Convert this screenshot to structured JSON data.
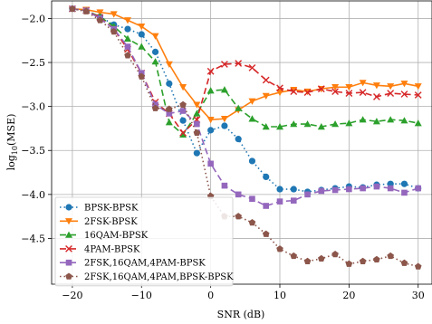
{
  "chart_data": {
    "type": "line",
    "xlabel": "SNR (dB)",
    "ylabel_main": "log",
    "ylabel_sub": "10",
    "ylabel_rest": "(MSE)",
    "xlim": [
      -23,
      32
    ],
    "ylim": [
      -5.02,
      -1.8
    ],
    "xticks": [
      -20,
      -10,
      0,
      10,
      20,
      30
    ],
    "xtick_labels": [
      "−20",
      "−10",
      "0",
      "10",
      "20",
      "30"
    ],
    "yticks": [
      -4.5,
      -4.0,
      -3.5,
      -3.0,
      -2.5,
      -2.0
    ],
    "ytick_labels": [
      "−4.5",
      "−4.0",
      "−3.5",
      "−3.0",
      "−2.5",
      "−2.0"
    ],
    "grid": true,
    "legend_position": "lower-left",
    "series": [
      {
        "name": "BPSK-BPSK",
        "color": "#1f77b4",
        "dash": "1.5,3",
        "marker": "circle",
        "x": [
          -20,
          -18,
          -16,
          -14,
          -12,
          -10,
          -8,
          -6,
          -4,
          -2,
          0,
          2,
          4,
          6,
          8,
          10,
          12,
          14,
          16,
          18,
          20,
          22,
          24,
          26,
          28,
          30
        ],
        "y": [
          -1.89,
          -1.91,
          -1.98,
          -2.07,
          -2.12,
          -2.18,
          -2.38,
          -2.74,
          -3.16,
          -3.53,
          -3.27,
          -3.22,
          -3.37,
          -3.62,
          -3.8,
          -3.94,
          -3.94,
          -3.97,
          -3.95,
          -3.93,
          -3.91,
          -3.92,
          -3.89,
          -3.88,
          -3.88,
          -3.93
        ]
      },
      {
        "name": "2FSK-BPSK",
        "color": "#ff7f0e",
        "dash": "",
        "marker": "triangle-down",
        "x": [
          -20,
          -18,
          -16,
          -14,
          -12,
          -10,
          -8,
          -6,
          -4,
          -2,
          0,
          2,
          4,
          6,
          8,
          10,
          12,
          14,
          16,
          18,
          20,
          22,
          24,
          26,
          28,
          30
        ],
        "y": [
          -1.89,
          -1.9,
          -1.93,
          -1.95,
          -2.02,
          -2.09,
          -2.2,
          -2.52,
          -2.78,
          -2.98,
          -3.15,
          -3.14,
          -3.04,
          -2.94,
          -2.88,
          -2.84,
          -2.81,
          -2.83,
          -2.8,
          -2.78,
          -2.78,
          -2.73,
          -2.76,
          -2.77,
          -2.74,
          -2.77
        ]
      },
      {
        "name": "16QAM-BPSK",
        "color": "#2ca02c",
        "dash": "7,4",
        "marker": "triangle-up",
        "x": [
          -20,
          -18,
          -16,
          -14,
          -12,
          -10,
          -8,
          -6,
          -4,
          -2,
          0,
          2,
          4,
          6,
          8,
          10,
          12,
          14,
          16,
          18,
          20,
          22,
          24,
          26,
          28,
          30
        ],
        "y": [
          -1.89,
          -1.91,
          -1.98,
          -2.09,
          -2.23,
          -2.32,
          -2.49,
          -3.18,
          -3.32,
          -3.08,
          -2.82,
          -2.81,
          -3.02,
          -3.14,
          -3.23,
          -3.23,
          -3.2,
          -3.2,
          -3.23,
          -3.2,
          -3.19,
          -3.15,
          -3.17,
          -3.15,
          -3.16,
          -3.19
        ]
      },
      {
        "name": "4PAM-BPSK",
        "color": "#d62728",
        "dash": "7,4",
        "marker": "x",
        "x": [
          -20,
          -18,
          -16,
          -14,
          -12,
          -10,
          -8,
          -6,
          -4,
          -2,
          0,
          2,
          4,
          6,
          8,
          10,
          12,
          14,
          16,
          18,
          20,
          22,
          24,
          26,
          28,
          30
        ],
        "y": [
          -1.89,
          -1.91,
          -1.99,
          -2.12,
          -2.35,
          -2.62,
          -2.95,
          -3.08,
          -3.3,
          -3.15,
          -2.6,
          -2.52,
          -2.51,
          -2.56,
          -2.7,
          -2.79,
          -2.83,
          -2.84,
          -2.8,
          -2.83,
          -2.85,
          -2.84,
          -2.89,
          -2.85,
          -2.86,
          -2.87
        ]
      },
      {
        "name": "2FSK,16QAM,4PAM-BPSK",
        "color": "#9467bd",
        "dash": "7,4",
        "marker": "square",
        "x": [
          -20,
          -18,
          -16,
          -14,
          -12,
          -10,
          -8,
          -6,
          -4,
          -2,
          0,
          2,
          4,
          6,
          8,
          10,
          12,
          14,
          16,
          18,
          20,
          22,
          24,
          26,
          28,
          30
        ],
        "y": [
          -1.89,
          -1.91,
          -2.0,
          -2.12,
          -2.32,
          -2.62,
          -2.98,
          -3.08,
          -3.05,
          -3.2,
          -3.65,
          -3.9,
          -4.0,
          -4.05,
          -4.13,
          -4.08,
          -4.07,
          -4.0,
          -3.96,
          -3.95,
          -3.94,
          -3.93,
          -3.91,
          -3.93,
          -3.98,
          -3.93
        ]
      },
      {
        "name": "2FSK,16QAM,4PAM,BPSK-BPSK",
        "color": "#8c564b",
        "dash": "1.5,3",
        "marker": "pentagon",
        "x": [
          -20,
          -18,
          -16,
          -14,
          -12,
          -10,
          -8,
          -6,
          -4,
          -2,
          0,
          2,
          4,
          6,
          8,
          10,
          12,
          14,
          16,
          18,
          20,
          22,
          24,
          26,
          28,
          30
        ],
        "y": [
          -1.89,
          -1.92,
          -2.02,
          -2.15,
          -2.42,
          -2.66,
          -3.02,
          -3.03,
          -2.98,
          -3.3,
          -4.02,
          -4.25,
          -4.25,
          -4.32,
          -4.45,
          -4.62,
          -4.7,
          -4.76,
          -4.73,
          -4.68,
          -4.79,
          -4.76,
          -4.74,
          -4.7,
          -4.78,
          -4.82
        ]
      }
    ]
  }
}
